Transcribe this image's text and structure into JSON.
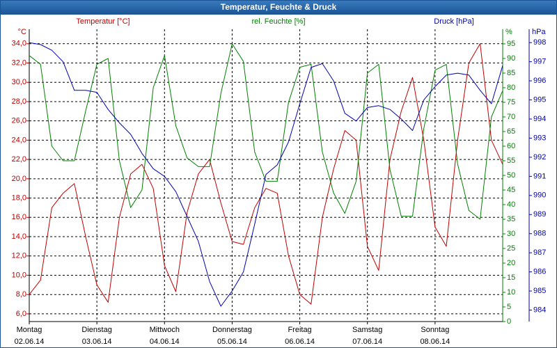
{
  "chart_data": {
    "type": "line",
    "title": "Temperatur, Feuchte & Druck",
    "y_label": "Temperatur [°C]",
    "y_unit": "°C",
    "y2_label": "rel. Feuchte [%]",
    "y2_unit": "%",
    "y3_label": "Druck [hPa]",
    "y3_unit": "hPa",
    "x": [
      0,
      4,
      8,
      12,
      16,
      20,
      24,
      28,
      32,
      36,
      40,
      44,
      48,
      52,
      56,
      60,
      64,
      68,
      72,
      76,
      80,
      84,
      88,
      92,
      96,
      100,
      104,
      108,
      112,
      116,
      120,
      124,
      128,
      132,
      136,
      140,
      144,
      148,
      152,
      156,
      160,
      164,
      168
    ],
    "xlim": [
      0,
      168
    ],
    "xticks": [
      {
        "value": 0,
        "label": "Montag",
        "date": "02.06.14"
      },
      {
        "value": 24,
        "label": "Dienstag",
        "date": "03.06.14"
      },
      {
        "value": 48,
        "label": "Mittwoch",
        "date": "04.06.14"
      },
      {
        "value": 72,
        "label": "Donnerstag",
        "date": "05.06.14"
      },
      {
        "value": 96,
        "label": "Freitag",
        "date": "06.06.14"
      },
      {
        "value": 120,
        "label": "Samstag",
        "date": "07.06.14"
      },
      {
        "value": 144,
        "label": "Sonntag",
        "date": "08.06.14"
      }
    ],
    "ylim": [
      5.2,
      35.5
    ],
    "yticks": [
      {
        "value": 6,
        "label": "6,0"
      },
      {
        "value": 8,
        "label": "8,0"
      },
      {
        "value": 10,
        "label": "10,0"
      },
      {
        "value": 12,
        "label": "12,0"
      },
      {
        "value": 14,
        "label": "14,0"
      },
      {
        "value": 16,
        "label": "16,0"
      },
      {
        "value": 18,
        "label": "18,0"
      },
      {
        "value": 20,
        "label": "20,0"
      },
      {
        "value": 22,
        "label": "22,0"
      },
      {
        "value": 24,
        "label": "24,0"
      },
      {
        "value": 26,
        "label": "26,0"
      },
      {
        "value": 28,
        "label": "28,0"
      },
      {
        "value": 30,
        "label": "30,0"
      },
      {
        "value": 32,
        "label": "32,0"
      },
      {
        "value": 34,
        "label": "34,0"
      }
    ],
    "y2lim": [
      0,
      100
    ],
    "y2ticks": [
      0,
      5,
      10,
      15,
      20,
      25,
      30,
      35,
      40,
      45,
      50,
      55,
      60,
      65,
      70,
      75,
      80,
      85,
      90,
      95
    ],
    "y3lim": [
      983.4,
      998.7
    ],
    "y3ticks": [
      984,
      985,
      986,
      987,
      988,
      989,
      990,
      991,
      992,
      993,
      994,
      995,
      996,
      997,
      998
    ],
    "grid": true,
    "series": [
      {
        "name": "Temperatur",
        "color": "#c00000",
        "axis": "y",
        "values": [
          8.0,
          9.5,
          17.0,
          18.5,
          19.5,
          14.0,
          9.0,
          7.2,
          16.0,
          20.5,
          21.5,
          19.0,
          11.0,
          8.3,
          16.5,
          20.5,
          22.0,
          17.5,
          13.5,
          13.2,
          17.0,
          19.0,
          18.5,
          12.0,
          8.0,
          7.0,
          16.0,
          21.0,
          25.0,
          24.0,
          13.0,
          10.5,
          22.0,
          27.0,
          30.5,
          24.0,
          15.0,
          13.0,
          24.0,
          32.0,
          34.0,
          24.0,
          21.5
        ]
      },
      {
        "name": "rel. Feuchte",
        "color": "#008000",
        "axis": "y2",
        "values": [
          91,
          88,
          60,
          55,
          55,
          72,
          88,
          90,
          55,
          39,
          45,
          80,
          91,
          67,
          56,
          53,
          53,
          78,
          95,
          89,
          58,
          48,
          48,
          75,
          87,
          88,
          58,
          44,
          37,
          48,
          85,
          88,
          52,
          36,
          36,
          66,
          86,
          88,
          54,
          38,
          35,
          70,
          79
        ]
      },
      {
        "name": "Druck",
        "color": "#0000b0",
        "axis": "y3",
        "values": [
          998,
          997.9,
          997.6,
          997.0,
          995.5,
          995.5,
          995.4,
          994.5,
          993.8,
          993.2,
          992.2,
          991.4,
          991.0,
          990.2,
          988.9,
          987.6,
          985.5,
          984.2,
          985.0,
          986.0,
          988.5,
          991.1,
          991.6,
          992.8,
          994.8,
          996.7,
          996.9,
          996.0,
          994.3,
          993.9,
          994.6,
          994.7,
          994.5,
          994.0,
          993.4,
          995.0,
          995.7,
          996.3,
          996.4,
          996.3,
          995.5,
          994.8,
          996.8
        ]
      }
    ]
  }
}
